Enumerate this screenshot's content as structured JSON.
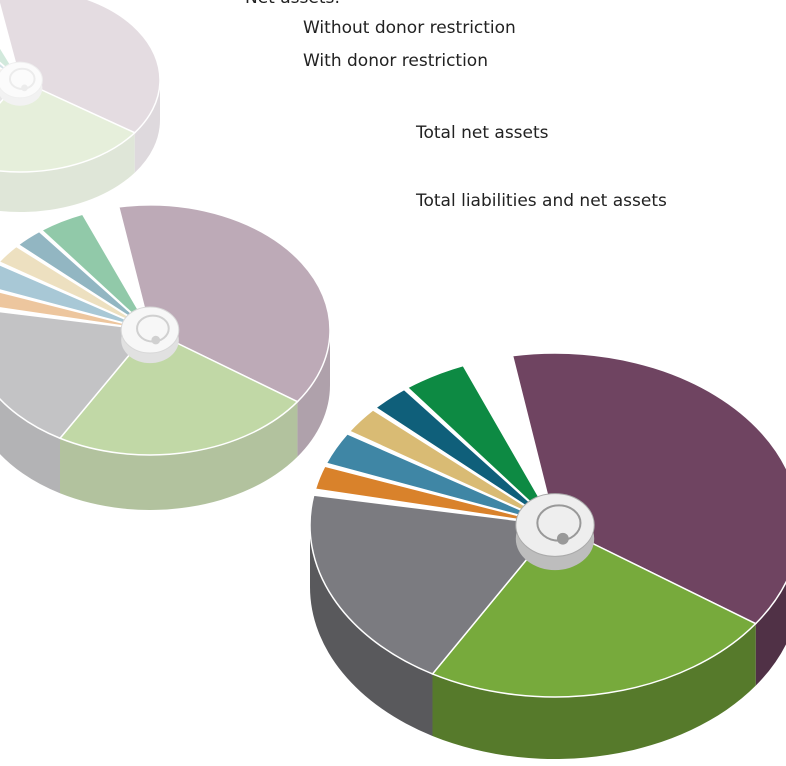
{
  "net_assets": {
    "heading": "Net assets:",
    "items": [
      "Without donor restriction",
      "With donor restriction"
    ]
  },
  "total_net_assets": "Total net assets",
  "total_liabilities_and_net_assets": "Total liabilities and net assets"
}
